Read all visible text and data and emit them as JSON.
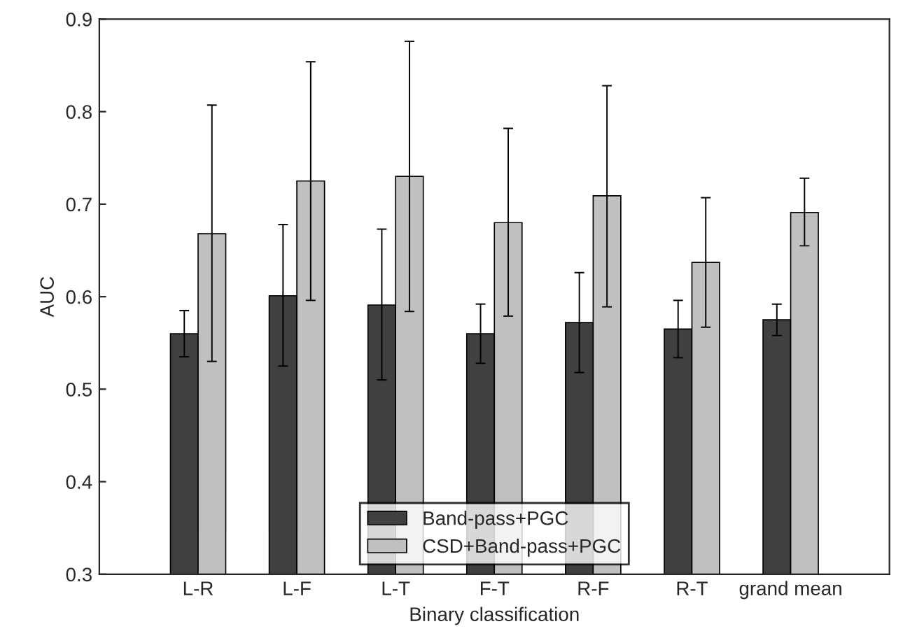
{
  "chart_data": {
    "type": "bar",
    "xlabel": "Binary classification",
    "ylabel": "AUC",
    "categories": [
      "L-R",
      "L-F",
      "L-T",
      "F-T",
      "R-F",
      "R-T",
      "grand mean"
    ],
    "series": [
      {
        "name": "Band-pass+PGC",
        "color": "#404040",
        "values": [
          0.56,
          0.601,
          0.591,
          0.56,
          0.572,
          0.565,
          0.575
        ],
        "errors": [
          [
            0.535,
            0.585
          ],
          [
            0.525,
            0.678
          ],
          [
            0.51,
            0.673
          ],
          [
            0.528,
            0.592
          ],
          [
            0.518,
            0.626
          ],
          [
            0.534,
            0.596
          ],
          [
            0.558,
            0.592
          ]
        ]
      },
      {
        "name": "CSD+Band-pass+PGC",
        "color": "#c0c0c0",
        "values": [
          0.668,
          0.725,
          0.73,
          0.68,
          0.709,
          0.637,
          0.691
        ],
        "errors": [
          [
            0.53,
            0.807
          ],
          [
            0.596,
            0.854
          ],
          [
            0.584,
            0.876
          ],
          [
            0.579,
            0.782
          ],
          [
            0.589,
            0.828
          ],
          [
            0.567,
            0.707
          ],
          [
            0.655,
            0.728
          ]
        ]
      }
    ],
    "ylim": [
      0.3,
      0.9
    ],
    "yticks": [
      0.3,
      0.4,
      0.5,
      0.6,
      0.7,
      0.8,
      0.9
    ],
    "grid": false,
    "legend": "bottom"
  }
}
